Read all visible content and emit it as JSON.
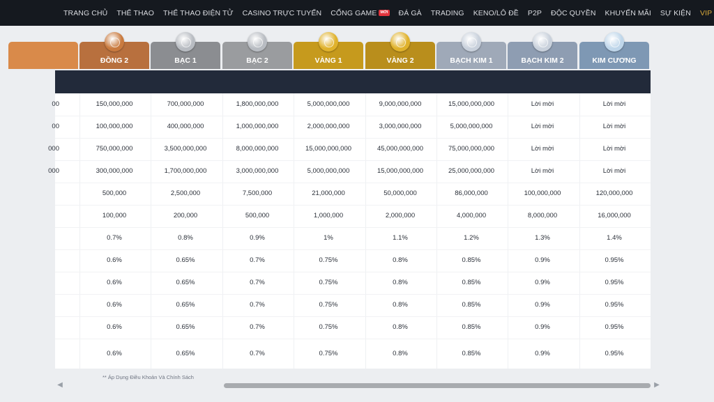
{
  "nav": [
    {
      "label": "TRANG CHỦ",
      "name": "nav-home"
    },
    {
      "label": "THỂ THAO",
      "name": "nav-sports"
    },
    {
      "label": "THỂ THAO ĐIỆN TỬ",
      "name": "nav-esports"
    },
    {
      "label": "CASINO TRỰC TUYẾN",
      "name": "nav-live-casino"
    },
    {
      "label": "CỔNG GAME",
      "name": "nav-game-portal",
      "badge": "MỚI"
    },
    {
      "label": "ĐÁ GÀ",
      "name": "nav-cockfight"
    },
    {
      "label": "TRADING",
      "name": "nav-trading"
    },
    {
      "label": "KENO/LÔ ĐỀ",
      "name": "nav-keno-lottery"
    },
    {
      "label": "P2P",
      "name": "nav-p2p"
    },
    {
      "label": "ĐỘC QUYỀN",
      "name": "nav-exclusive"
    },
    {
      "label": "KHUYẾN MÃI",
      "name": "nav-promotions"
    },
    {
      "label": "SỰ KIỆN",
      "name": "nav-events"
    },
    {
      "label": "VIP",
      "name": "nav-vip",
      "active": true
    }
  ],
  "tiers": [
    {
      "name": "",
      "color": "#d98a4a",
      "medal": "bronze"
    },
    {
      "name": "ĐỒNG 2",
      "color": "#b8703e",
      "medal": "bronze"
    },
    {
      "name": "BẠC 1",
      "color": "#8b8d91",
      "medal": "silver"
    },
    {
      "name": "BẠC 2",
      "color": "#9a9c9f",
      "medal": "silver"
    },
    {
      "name": "VÀNG 1",
      "color": "#c69a1d",
      "medal": "gold"
    },
    {
      "name": "VÀNG 2",
      "color": "#b98e1c",
      "medal": "gold"
    },
    {
      "name": "BẠCH KIM 1",
      "color": "#9fa9b8",
      "medal": "platinum"
    },
    {
      "name": "BẠCH KIM 2",
      "color": "#8e9db2",
      "medal": "platinum"
    },
    {
      "name": "KIM CƯƠNG",
      "color": "#7e98b4",
      "medal": "diamond"
    }
  ],
  "medal_colors": {
    "bronze": "#c97a3f",
    "silver": "#b8bcc2",
    "gold": "#e0b22c",
    "platinum": "#c9d1dc",
    "diamond": "#bfd6ea"
  },
  "rows": [
    [
      "00",
      "150,000,000",
      "700,000,000",
      "1,800,000,000",
      "5,000,000,000",
      "9,000,000,000",
      "15,000,000,000",
      "Lời mời",
      "Lời mời"
    ],
    [
      "00",
      "100,000,000",
      "400,000,000",
      "1,000,000,000",
      "2,000,000,000",
      "3,000,000,000",
      "5,000,000,000",
      "Lời mời",
      "Lời mời"
    ],
    [
      "000",
      "750,000,000",
      "3,500,000,000",
      "8,000,000,000",
      "15,000,000,000",
      "45,000,000,000",
      "75,000,000,000",
      "Lời mời",
      "Lời mời"
    ],
    [
      "000",
      "300,000,000",
      "1,700,000,000",
      "3,000,000,000",
      "5,000,000,000",
      "15,000,000,000",
      "25,000,000,000",
      "Lời mời",
      "Lời mời"
    ],
    [
      "",
      "500,000",
      "2,500,000",
      "7,500,000",
      "21,000,000",
      "50,000,000",
      "86,000,000",
      "100,000,000",
      "120,000,000"
    ],
    [
      "",
      "100,000",
      "200,000",
      "500,000",
      "1,000,000",
      "2,000,000",
      "4,000,000",
      "8,000,000",
      "16,000,000"
    ],
    [
      "",
      "0.7%",
      "0.8%",
      "0.9%",
      "1%",
      "1.1%",
      "1.2%",
      "1.3%",
      "1.4%"
    ],
    [
      "",
      "0.6%",
      "0.65%",
      "0.7%",
      "0.75%",
      "0.8%",
      "0.85%",
      "0.9%",
      "0.95%"
    ],
    [
      "",
      "0.6%",
      "0.65%",
      "0.7%",
      "0.75%",
      "0.8%",
      "0.85%",
      "0.9%",
      "0.95%"
    ],
    [
      "",
      "0.6%",
      "0.65%",
      "0.7%",
      "0.75%",
      "0.8%",
      "0.85%",
      "0.9%",
      "0.95%"
    ],
    [
      "",
      "0.6%",
      "0.65%",
      "0.7%",
      "0.75%",
      "0.8%",
      "0.85%",
      "0.9%",
      "0.95%"
    ],
    [
      "",
      "0.6%",
      "0.65%",
      "0.7%",
      "0.75%",
      "0.8%",
      "0.85%",
      "0.9%",
      "0.95%"
    ]
  ],
  "footer_note": "** Áp Dụng Điều Khoản Và Chính Sách",
  "scrollbar": {
    "left_icon": "arrow-left-icon",
    "right_icon": "arrow-right-icon",
    "left_glyph": "◀",
    "right_glyph": "▶",
    "position": 0.27,
    "size": 0.73
  }
}
